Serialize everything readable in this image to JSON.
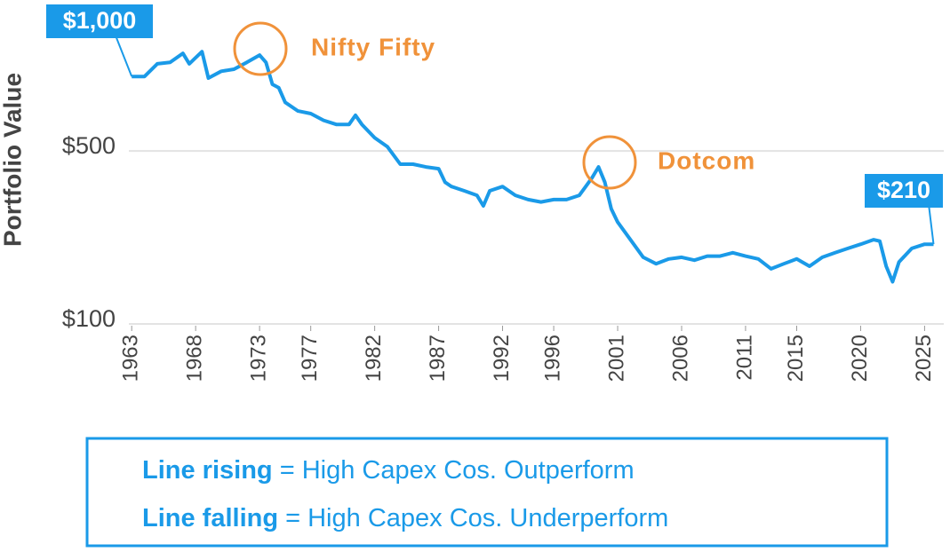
{
  "chart_data": {
    "type": "line",
    "y_axis_label": "Portfolio Value",
    "log_scale": true,
    "grid": true,
    "start_label": "$1,000",
    "end_label": "$210",
    "annotations": [
      "Nifty Fifty",
      "Dotcom"
    ],
    "series": [
      {
        "name": "Portfolio",
        "color": "#1a9ae8",
        "x": [
          1963,
          1964,
          1965,
          1966,
          1967,
          1967.5,
          1968,
          1968.5,
          1969,
          1970,
          1971,
          1972,
          1973,
          1973.5,
          1974,
          1974.5,
          1975,
          1976,
          1977,
          1978,
          1979,
          1980,
          1980.5,
          1981,
          1982,
          1983,
          1984,
          1985,
          1986,
          1987,
          1987.5,
          1988,
          1989,
          1990,
          1990.5,
          1991,
          1992,
          1993,
          1994,
          1995,
          1996,
          1997,
          1998,
          1998.5,
          1999,
          1999.5,
          2000,
          2000.5,
          2001,
          2002,
          2003,
          2004,
          2005,
          2006,
          2007,
          2008,
          2009,
          2010,
          2011,
          2012,
          2013,
          2014,
          2015,
          2016,
          2017,
          2018,
          2019,
          2020,
          2021,
          2021.5,
          2022,
          2022.5,
          2023,
          2024,
          2025,
          2025.7
        ],
        "values": [
          1000,
          1000,
          1125,
          1140,
          1240,
          1125,
          1190,
          1260,
          985,
          1050,
          1070,
          1140,
          1220,
          1140,
          930,
          900,
          786,
          725,
          708,
          665,
          640,
          640,
          697,
          640,
          565,
          520,
          442,
          442,
          431,
          424,
          374,
          359,
          345,
          331,
          300,
          345,
          359,
          331,
          318,
          311,
          318,
          318,
          331,
          359,
          390,
          431,
          374,
          292,
          258,
          219,
          186,
          175,
          183,
          186,
          181,
          188,
          188,
          194,
          188,
          183,
          167,
          175,
          183,
          171,
          186,
          194,
          202,
          210,
          219,
          216,
          171,
          148,
          178,
          202,
          210,
          210
        ]
      }
    ],
    "xlim": [
      1962.5,
      2026.5
    ],
    "xticks": [
      1963,
      1968,
      1973,
      1977,
      1982,
      1987,
      1992,
      1996,
      2001,
      2006,
      2011,
      2015,
      2020,
      2025
    ],
    "ylim": [
      100,
      1800
    ],
    "yticks": [
      {
        "value": 100,
        "label": "$100"
      },
      {
        "value": 500,
        "label": "$500"
      }
    ]
  },
  "key": [
    {
      "strong": "Line rising",
      "text": "= High Capex Cos. Outperform"
    },
    {
      "strong": "Line falling",
      "text": "= High Capex Cos. Underperform"
    }
  ]
}
